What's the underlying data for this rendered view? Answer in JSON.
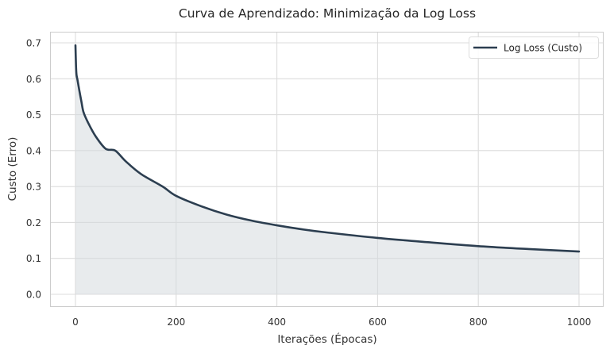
{
  "chart_data": {
    "type": "area",
    "title": "Curva de Aprendizado: Minimização da Log Loss",
    "xlabel": "Iterações (Épocas)",
    "ylabel": "Custo (Erro)",
    "xlim": [
      -50,
      1050
    ],
    "ylim": [
      -0.035,
      0.73
    ],
    "xticks": [
      0,
      200,
      400,
      600,
      800,
      1000
    ],
    "xtick_labels": [
      "0",
      "200",
      "400",
      "600",
      "800",
      "1000"
    ],
    "yticks": [
      0.0,
      0.1,
      0.2,
      0.3,
      0.4,
      0.5,
      0.6,
      0.7
    ],
    "ytick_labels": [
      "0.0",
      "0.1",
      "0.2",
      "0.3",
      "0.4",
      "0.5",
      "0.6",
      "0.7"
    ],
    "grid": true,
    "legend_position": "upper right",
    "series": [
      {
        "name": "Log Loss (Custo)",
        "color": "#2c3e50",
        "fill_color": "#d5dadf",
        "fill_under": true,
        "x": [
          0,
          1,
          2,
          4,
          8,
          12,
          16,
          25,
          40,
          60,
          79,
          100,
          130,
          173,
          200,
          250,
          300,
          350,
          400,
          450,
          500,
          600,
          700,
          800,
          900,
          1000
        ],
        "values": [
          0.693,
          0.64,
          0.612,
          0.597,
          0.565,
          0.535,
          0.507,
          0.478,
          0.44,
          0.405,
          0.4,
          0.37,
          0.335,
          0.3,
          0.274,
          0.245,
          0.222,
          0.205,
          0.192,
          0.181,
          0.172,
          0.157,
          0.145,
          0.134,
          0.126,
          0.119
        ]
      }
    ]
  }
}
